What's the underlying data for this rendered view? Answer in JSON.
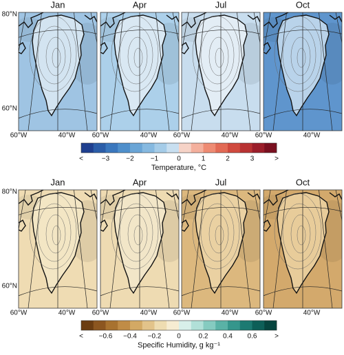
{
  "rows": [
    {
      "lat_labels": [
        "80°N",
        "60°N"
      ],
      "panels": [
        {
          "title": "Jan",
          "background": "#9fc4e3",
          "land": "#d3e4f1",
          "lon_labels": [
            "60°W",
            "40°W"
          ]
        },
        {
          "title": "Apr",
          "background": "#acd0ea",
          "land": "#d9e8f3",
          "lon_labels": [
            "60°W",
            "40°W"
          ]
        },
        {
          "title": "Jul",
          "background": "#c8ddee",
          "land": "#e3edf5",
          "lon_labels": [
            "60°W",
            "40°W"
          ]
        },
        {
          "title": "Oct",
          "background": "#5f95cd",
          "land": "#b9d3ea",
          "lon_labels": [
            "60°W",
            "40°W"
          ]
        }
      ],
      "colorbar": {
        "label": "Temperature, °C",
        "tick_labels": [
          "<",
          "−3",
          "−2",
          "−1",
          "0",
          "1",
          "2",
          "3",
          ">"
        ],
        "colors": [
          "#1f3f8f",
          "#2b5da8",
          "#3a77bd",
          "#4f8fcb",
          "#6aa5d6",
          "#86b9e0",
          "#a5cce8",
          "#c8dff0",
          "#f6d3c7",
          "#f4b09d",
          "#ee8b73",
          "#e26a55",
          "#d04a3e",
          "#b83232",
          "#9b1e2a",
          "#7a1020"
        ]
      }
    },
    {
      "lat_labels": [
        "80°N",
        "60°N"
      ],
      "panels": [
        {
          "title": "Jan",
          "background": "#efdcb3",
          "land": "#f3e6c4",
          "lon_labels": [
            "60°W",
            "40°W"
          ]
        },
        {
          "title": "Apr",
          "background": "#eedbb2",
          "land": "#f2e6c8",
          "lon_labels": [
            "60°W",
            "40°W"
          ]
        },
        {
          "title": "Jul",
          "background": "#dcb87e",
          "land": "#ead1a2",
          "lon_labels": [
            "60°W",
            "40°W"
          ]
        },
        {
          "title": "Oct",
          "background": "#d3a96c",
          "land": "#e8cc9a",
          "lon_labels": [
            "60°W",
            "40°W"
          ]
        }
      ],
      "colorbar": {
        "label": "Specific Humidity, g kg⁻¹",
        "tick_labels": [
          "<",
          "−0.6",
          "−0.4",
          "−0.2",
          "0",
          "0.2",
          "0.4",
          "0.6",
          ">"
        ],
        "colors": [
          "#6b3d12",
          "#8c5620",
          "#a8722f",
          "#c08c46",
          "#d3a964",
          "#e2c38a",
          "#eedcb1",
          "#f6ecd2",
          "#d8efea",
          "#b1e0d8",
          "#85cbc0",
          "#5ab2a6",
          "#35968c",
          "#1c7a72",
          "#0d5f58",
          "#06453f"
        ]
      }
    }
  ]
}
